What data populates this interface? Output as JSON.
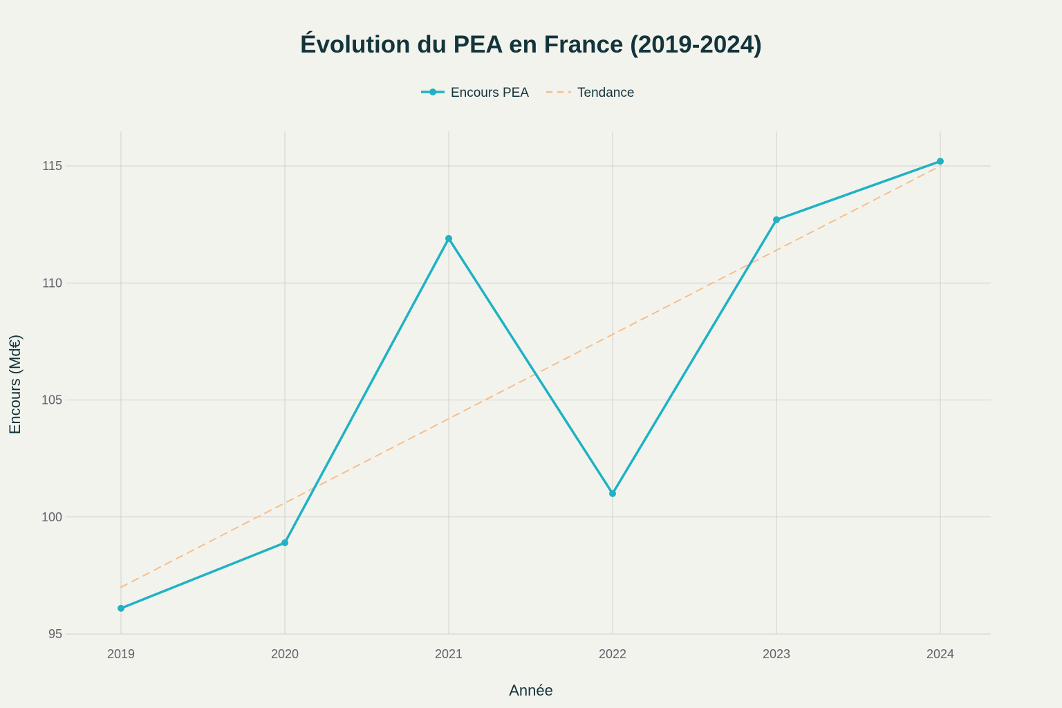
{
  "chart_data": {
    "type": "line",
    "title": "Évolution du PEA en France (2019-2024)",
    "xlabel": "Année",
    "ylabel": "Encours (Md€)",
    "categories": [
      "2019",
      "2020",
      "2021",
      "2022",
      "2023",
      "2024"
    ],
    "yticks": [
      95,
      100,
      105,
      110,
      115
    ],
    "ylim": [
      95,
      116.5
    ],
    "grid": true,
    "legend_position": "top-center",
    "series": [
      {
        "name": "Encours PEA",
        "style": "solid-markers",
        "color": "#1fb2c3",
        "values": [
          96.1,
          98.9,
          111.9,
          101.0,
          112.7,
          115.2
        ]
      },
      {
        "name": "Tendance",
        "style": "dashed",
        "color": "#f5bf8a",
        "values": [
          97.0,
          100.6,
          104.2,
          107.8,
          111.4,
          115.0
        ]
      }
    ]
  }
}
